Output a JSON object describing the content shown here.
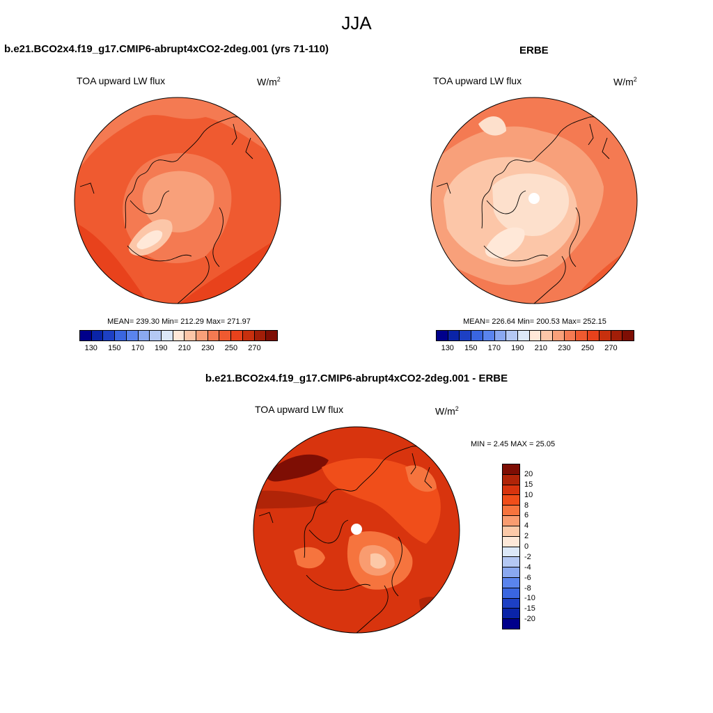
{
  "season": "JJA",
  "panel_a": {
    "case": "b.e21.BCO2x4.f19_g17.CMIP6-abrupt4xCO2-2deg.001 (yrs 71-110)",
    "variable": "TOA upward LW flux",
    "units_base": "W/m",
    "units_exp": "2",
    "stats": "MEAN= 239.30  Min= 212.29  Max= 271.97"
  },
  "panel_b": {
    "case": "ERBE",
    "variable": "TOA upward LW flux",
    "units_base": "W/m",
    "units_exp": "2",
    "stats": "MEAN= 226.64  Min= 200.53  Max= 252.15"
  },
  "panel_c": {
    "case": "b.e21.BCO2x4.f19_g17.CMIP6-abrupt4xCO2-2deg.001 - ERBE",
    "variable": "TOA upward LW flux",
    "units_base": "W/m",
    "units_exp": "2",
    "stats": "MIN =   2.45 MAX =  25.05"
  },
  "abs_colorbar": {
    "colors": [
      "#00008b",
      "#0a24a8",
      "#1d40c4",
      "#3a66e0",
      "#5a84ee",
      "#8aa8f0",
      "#b4c8f4",
      "#dce8f8",
      "#ffe8d8",
      "#fcc6a8",
      "#f8a07a",
      "#f47a52",
      "#ef5a30",
      "#e8421c",
      "#c8300e",
      "#a21e08",
      "#7e0e04"
    ],
    "labels": [
      "130",
      "150",
      "170",
      "190",
      "210",
      "230",
      "250",
      "270"
    ]
  },
  "diff_colorbar": {
    "colors": [
      "#7e0e04",
      "#b02408",
      "#d8340e",
      "#f04e1a",
      "#f6743e",
      "#f99c70",
      "#fcc9a8",
      "#fde8d8",
      "#dce8f8",
      "#b4c8f4",
      "#8aa8f0",
      "#5a84ee",
      "#3a66e0",
      "#1d40c4",
      "#0a24a8",
      "#00008b"
    ],
    "labels": [
      "20",
      "15",
      "10",
      "8",
      "6",
      "4",
      "2",
      "0",
      "-2",
      "-4",
      "-6",
      "-8",
      "-10",
      "-15",
      "-20"
    ]
  },
  "chart_data": [
    {
      "type": "map",
      "projection": "polar-stereographic (north pole)",
      "title": "b.e21.BCO2x4.f19_g17.CMIP6-abrupt4xCO2-2deg.001 (yrs 71-110)",
      "variable": "TOA upward LW flux",
      "units": "W/m2",
      "mean": 239.3,
      "min": 212.29,
      "max": 271.97,
      "contour_levels": [
        130,
        140,
        150,
        160,
        170,
        180,
        190,
        200,
        210,
        220,
        230,
        240,
        250,
        260,
        270,
        280
      ]
    },
    {
      "type": "map",
      "projection": "polar-stereographic (north pole)",
      "title": "ERBE",
      "variable": "TOA upward LW flux",
      "units": "W/m2",
      "mean": 226.64,
      "min": 200.53,
      "max": 252.15,
      "contour_levels": [
        130,
        140,
        150,
        160,
        170,
        180,
        190,
        200,
        210,
        220,
        230,
        240,
        250,
        260,
        270,
        280
      ]
    },
    {
      "type": "map",
      "projection": "polar-stereographic (north pole)",
      "title": "b.e21.BCO2x4.f19_g17.CMIP6-abrupt4xCO2-2deg.001 - ERBE",
      "variable": "TOA upward LW flux",
      "units": "W/m2",
      "min": 2.45,
      "max": 25.05,
      "contour_levels": [
        -20,
        -15,
        -10,
        -8,
        -6,
        -4,
        -2,
        0,
        2,
        4,
        6,
        8,
        10,
        15,
        20
      ]
    }
  ]
}
